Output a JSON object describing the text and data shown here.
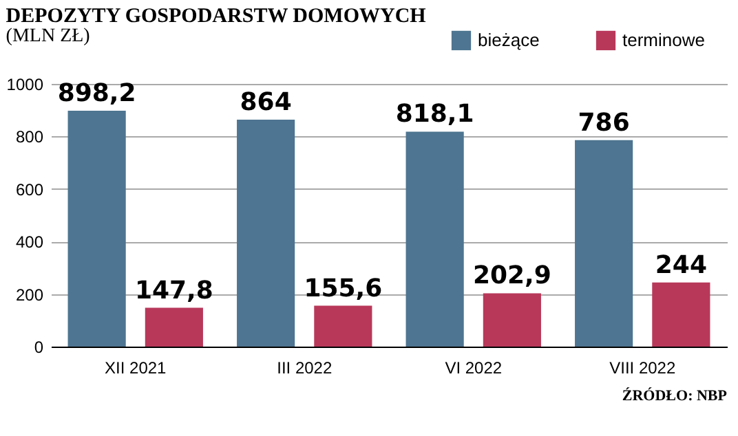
{
  "chart_data": {
    "type": "bar",
    "title": "DEPOZYTY GOSPODARSTW DOMOWYCH",
    "subtitle": "(MLN ZŁ)",
    "categories": [
      "XII 2021",
      "III 2022",
      "VI 2022",
      "VIII 2022"
    ],
    "series": [
      {
        "name": "bieżące",
        "color": "#4e7591",
        "values": [
          898.2,
          864,
          818.1,
          786
        ],
        "value_labels": [
          "898,2",
          "864",
          "818,1",
          "786"
        ]
      },
      {
        "name": "terminowe",
        "color": "#b8385a",
        "values": [
          147.8,
          155.6,
          202.9,
          244
        ],
        "value_labels": [
          "147,8",
          "155,6",
          "202,9",
          "244"
        ]
      }
    ],
    "ylim": [
      0,
      1000
    ],
    "yticks": [
      0,
      200,
      400,
      600,
      800,
      1000
    ],
    "grid": "y",
    "legend": "top right",
    "annotations": [
      "ŹRÓDŁO: NBP"
    ]
  }
}
